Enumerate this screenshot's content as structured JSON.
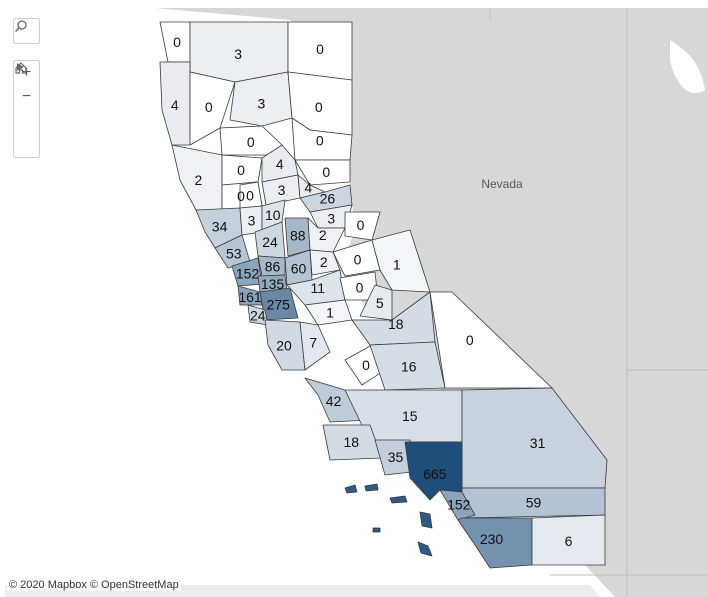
{
  "map": {
    "region": "California",
    "basemap": "light-gray",
    "neighbor_label": "Nevada",
    "attribution": "© 2020 Mapbox © OpenStreetMap",
    "color_scale": {
      "low": "#ffffff",
      "high": "#1f4e7a"
    }
  },
  "controls": {
    "search_icon": "magnifier-icon",
    "zoom_in_glyph": "+",
    "zoom_out_glyph": "−",
    "home_icon": "home-icon",
    "play_icon": "play-icon"
  },
  "counties": [
    {
      "id": "c1",
      "value": "0"
    },
    {
      "id": "c2",
      "value": "3"
    },
    {
      "id": "c3",
      "value": "0"
    },
    {
      "id": "c4",
      "value": "4"
    },
    {
      "id": "c5",
      "value": "0"
    },
    {
      "id": "c6",
      "value": "3"
    },
    {
      "id": "c7",
      "value": "0"
    },
    {
      "id": "c8",
      "value": "0"
    },
    {
      "id": "c9",
      "value": "0"
    },
    {
      "id": "c10",
      "value": "2"
    },
    {
      "id": "c11",
      "value": "0"
    },
    {
      "id": "c12",
      "value": "4"
    },
    {
      "id": "c13",
      "value": "0"
    },
    {
      "id": "c14",
      "value": "0"
    },
    {
      "id": "c15",
      "value": "0"
    },
    {
      "id": "c16",
      "value": "3"
    },
    {
      "id": "c17",
      "value": "4"
    },
    {
      "id": "c18",
      "value": "26"
    },
    {
      "id": "c19",
      "value": "3"
    },
    {
      "id": "c20",
      "value": "34"
    },
    {
      "id": "c21",
      "value": "3"
    },
    {
      "id": "c22",
      "value": "10"
    },
    {
      "id": "c23",
      "value": "24"
    },
    {
      "id": "c24",
      "value": "88"
    },
    {
      "id": "c25",
      "value": "2"
    },
    {
      "id": "c26",
      "value": "0"
    },
    {
      "id": "c27",
      "value": "53"
    },
    {
      "id": "c28",
      "value": "2"
    },
    {
      "id": "c29",
      "value": "152"
    },
    {
      "id": "c30",
      "value": "86"
    },
    {
      "id": "c31",
      "value": "135"
    },
    {
      "id": "c32",
      "value": "60"
    },
    {
      "id": "c33",
      "value": "0"
    },
    {
      "id": "c34",
      "value": "1"
    },
    {
      "id": "c35",
      "value": "161"
    },
    {
      "id": "c36",
      "value": "11"
    },
    {
      "id": "c37",
      "value": "0"
    },
    {
      "id": "c38",
      "value": "275"
    },
    {
      "id": "c39",
      "value": "24"
    },
    {
      "id": "c40",
      "value": "5"
    },
    {
      "id": "c41",
      "value": "1"
    },
    {
      "id": "c42",
      "value": "18"
    },
    {
      "id": "c43",
      "value": "0"
    },
    {
      "id": "c44",
      "value": "20"
    },
    {
      "id": "c45",
      "value": "7"
    },
    {
      "id": "c46",
      "value": "16"
    },
    {
      "id": "c47",
      "value": "0"
    },
    {
      "id": "c48",
      "value": "42"
    },
    {
      "id": "c49",
      "value": "15"
    },
    {
      "id": "c50",
      "value": "31"
    },
    {
      "id": "c51",
      "value": "18"
    },
    {
      "id": "c52",
      "value": "35"
    },
    {
      "id": "c53",
      "value": "665"
    },
    {
      "id": "c54",
      "value": "59"
    },
    {
      "id": "c55",
      "value": "152"
    },
    {
      "id": "c56",
      "value": "230"
    },
    {
      "id": "c57",
      "value": "6"
    }
  ]
}
